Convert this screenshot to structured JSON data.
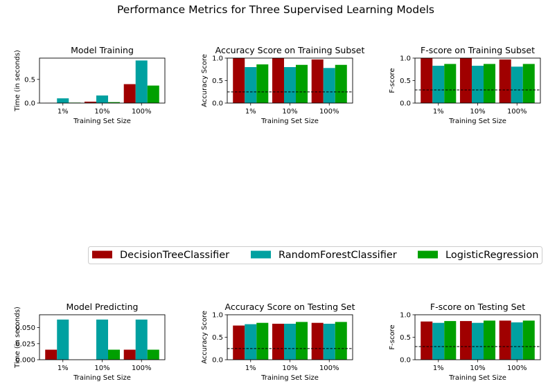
{
  "figure": {
    "title": "Performance Metrics for Three Supervised Learning Models"
  },
  "legend": {
    "placement": "center, between rows",
    "entries": [
      {
        "name": "DecisionTreeClassifier",
        "color": "#a00000"
      },
      {
        "name": "RandomForestClassifier",
        "color": "#00a0a0"
      },
      {
        "name": "LogisticRegression",
        "color": "#00a000"
      }
    ]
  },
  "chart_data": [
    {
      "type": "bar",
      "title": "Model Training",
      "xlabel": "Training Set Size",
      "ylabel": "Time (in seconds)",
      "categories": [
        "1%",
        "10%",
        "100%"
      ],
      "ylim": [
        0,
        0.95
      ],
      "yticks": [
        0.0,
        0.5
      ],
      "ytick_labels": [
        "0.0",
        "0.5"
      ],
      "baseline": null,
      "series": [
        {
          "name": "DecisionTreeClassifier",
          "values": [
            0.003,
            0.03,
            0.4
          ]
        },
        {
          "name": "RandomForestClassifier",
          "values": [
            0.1,
            0.16,
            0.9
          ]
        },
        {
          "name": "LogisticRegression",
          "values": [
            0.01,
            0.02,
            0.37
          ]
        }
      ]
    },
    {
      "type": "bar",
      "title": "Accuracy Score on Training Subset",
      "xlabel": "Training Set Size",
      "ylabel": "Accuracy Score",
      "categories": [
        "1%",
        "10%",
        "100%"
      ],
      "ylim": [
        0,
        1.0
      ],
      "yticks": [
        0.0,
        0.5,
        1.0
      ],
      "ytick_labels": [
        "0.0",
        "0.5",
        "1.0"
      ],
      "baseline": 0.2478,
      "series": [
        {
          "name": "DecisionTreeClassifier",
          "values": [
            1.0,
            1.0,
            0.97
          ]
        },
        {
          "name": "RandomForestClassifier",
          "values": [
            0.8,
            0.8,
            0.78
          ]
        },
        {
          "name": "LogisticRegression",
          "values": [
            0.86,
            0.85,
            0.85
          ]
        }
      ]
    },
    {
      "type": "bar",
      "title": "F-score on Training Subset",
      "xlabel": "Training Set Size",
      "ylabel": "F-score",
      "categories": [
        "1%",
        "10%",
        "100%"
      ],
      "ylim": [
        0,
        1.0
      ],
      "yticks": [
        0.0,
        0.5,
        1.0
      ],
      "ytick_labels": [
        "0.0",
        "0.5",
        "1.0"
      ],
      "baseline": 0.2917,
      "series": [
        {
          "name": "DecisionTreeClassifier",
          "values": [
            1.0,
            1.0,
            0.97
          ]
        },
        {
          "name": "RandomForestClassifier",
          "values": [
            0.83,
            0.83,
            0.81
          ]
        },
        {
          "name": "LogisticRegression",
          "values": [
            0.87,
            0.87,
            0.87
          ]
        }
      ]
    },
    {
      "type": "bar",
      "title": "Model Predicting",
      "xlabel": "Training Set Size",
      "ylabel": "Time (in seconds)",
      "categories": [
        "1%",
        "10%",
        "100%"
      ],
      "ylim": [
        0,
        0.07
      ],
      "yticks": [
        0.0,
        0.025,
        0.05
      ],
      "ytick_labels": [
        "0.000",
        "0.025",
        "0.050"
      ],
      "baseline": null,
      "series": [
        {
          "name": "DecisionTreeClassifier",
          "values": [
            0.0156,
            0.0,
            0.0156
          ]
        },
        {
          "name": "RandomForestClassifier",
          "values": [
            0.0625,
            0.0625,
            0.0625
          ]
        },
        {
          "name": "LogisticRegression",
          "values": [
            0.0,
            0.0156,
            0.0156
          ]
        }
      ]
    },
    {
      "type": "bar",
      "title": "Accuracy Score on Testing Set",
      "xlabel": "Training Set Size",
      "ylabel": "Accuracy Score",
      "categories": [
        "1%",
        "10%",
        "100%"
      ],
      "ylim": [
        0,
        1.0
      ],
      "yticks": [
        0.0,
        0.5,
        1.0
      ],
      "ytick_labels": [
        "0.0",
        "0.5",
        "1.0"
      ],
      "baseline": 0.2478,
      "series": [
        {
          "name": "DecisionTreeClassifier",
          "values": [
            0.76,
            0.8,
            0.82
          ]
        },
        {
          "name": "RandomForestClassifier",
          "values": [
            0.79,
            0.8,
            0.8
          ]
        },
        {
          "name": "LogisticRegression",
          "values": [
            0.82,
            0.84,
            0.84
          ]
        }
      ]
    },
    {
      "type": "bar",
      "title": "F-score on Testing Set",
      "xlabel": "Training Set Size",
      "ylabel": "F-score",
      "categories": [
        "1%",
        "10%",
        "100%"
      ],
      "ylim": [
        0,
        1.0
      ],
      "yticks": [
        0.0,
        0.5,
        1.0
      ],
      "ytick_labels": [
        "0.0",
        "0.5",
        "1.0"
      ],
      "baseline": 0.2917,
      "series": [
        {
          "name": "DecisionTreeClassifier",
          "values": [
            0.85,
            0.86,
            0.87
          ]
        },
        {
          "name": "RandomForestClassifier",
          "values": [
            0.82,
            0.82,
            0.83
          ]
        },
        {
          "name": "LogisticRegression",
          "values": [
            0.86,
            0.87,
            0.87
          ]
        }
      ]
    }
  ]
}
